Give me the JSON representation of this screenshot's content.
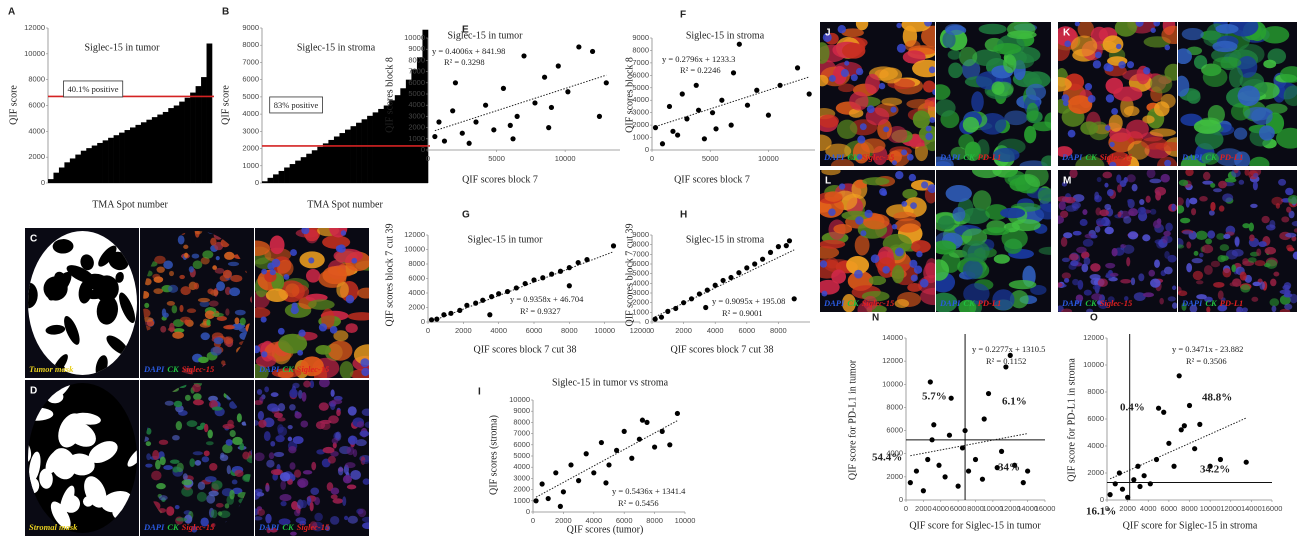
{
  "chart_data": [
    {
      "panel": "A",
      "type": "bar",
      "title": "Siglec-15 in tumor",
      "xlabel": "TMA Spot number",
      "ylabel": "QIF score",
      "values": [
        300,
        800,
        1200,
        1600,
        1900,
        2200,
        2500,
        2700,
        2900,
        3100,
        3300,
        3500,
        3700,
        3900,
        4100,
        4300,
        4500,
        4700,
        4900,
        5100,
        5300,
        5500,
        5800,
        6000,
        6300,
        6600,
        7000,
        7500,
        8200,
        10800
      ],
      "color": "#000000",
      "ylim": [
        0,
        12000
      ],
      "yticks": [
        0,
        2000,
        4000,
        6000,
        8000,
        10000,
        12000
      ],
      "threshold": 6700,
      "threshold_color": "#d42222",
      "annotations": [
        "40.1% positive"
      ]
    },
    {
      "panel": "B",
      "type": "bar",
      "title": "Siglec-15 in stroma",
      "xlabel": "TMA Spot number",
      "ylabel": "QIF score",
      "values": [
        100,
        300,
        500,
        700,
        900,
        1100,
        1300,
        1500,
        1700,
        1900,
        2100,
        2300,
        2500,
        2700,
        2900,
        3100,
        3300,
        3500,
        3700,
        3900,
        4100,
        4300,
        4500,
        4800,
        5100,
        5500,
        6000,
        6600,
        7300,
        8900
      ],
      "color": "#000000",
      "ylim": [
        0,
        9000
      ],
      "yticks": [
        0,
        1000,
        2000,
        3000,
        4000,
        5000,
        6000,
        7000,
        8000,
        9000
      ],
      "threshold": 2150,
      "threshold_color": "#d42222",
      "annotations": [
        "83% positive"
      ]
    },
    {
      "panel": "E",
      "type": "scatter",
      "title": "Siglec-15 in tumor",
      "xlabel": "QIF scores block 7",
      "ylabel": "QIF scores block 8",
      "x": [
        500,
        1200,
        1800,
        2500,
        3000,
        3500,
        4200,
        4800,
        5500,
        6000,
        6500,
        7000,
        7800,
        8500,
        9000,
        9500,
        10200,
        11000,
        12000,
        13000,
        12500,
        800,
        2000,
        6200,
        8800
      ],
      "values": [
        1200,
        800,
        3500,
        1500,
        600,
        2500,
        4000,
        1800,
        5500,
        2200,
        3000,
        8400,
        4200,
        6500,
        3800,
        7500,
        5200,
        9200,
        8800,
        6000,
        3000,
        2500,
        6000,
        1000,
        2000
      ],
      "color": "#000000",
      "xlim": [
        0,
        14000
      ],
      "xticks": [
        0,
        5000,
        10000
      ],
      "ylim": [
        0,
        10000
      ],
      "yticks": [
        0,
        1000,
        2000,
        3000,
        4000,
        5000,
        6000,
        7000,
        8000,
        9000,
        10000
      ],
      "trendline": true,
      "annotations": [
        "y = 0.4006x + 841.98",
        "R² = 0.3298"
      ]
    },
    {
      "panel": "F",
      "type": "scatter",
      "title": "Siglec-15 in stroma",
      "xlabel": "QIF scores block 7",
      "ylabel": "QIF scores block 8",
      "x": [
        300,
        900,
        1500,
        2200,
        3000,
        3800,
        4500,
        5200,
        6000,
        6800,
        7500,
        8200,
        9000,
        10000,
        11000,
        12500,
        13500,
        1800,
        4000,
        7000,
        5500,
        2600
      ],
      "values": [
        1800,
        500,
        3500,
        1200,
        2500,
        5200,
        900,
        3000,
        4000,
        2000,
        8500,
        3600,
        4800,
        2800,
        5200,
        6600,
        4500,
        1500,
        3200,
        6200,
        1700,
        4500
      ],
      "color": "#000000",
      "xlim": [
        0,
        14000
      ],
      "xticks": [
        0,
        5000,
        10000
      ],
      "ylim": [
        0,
        9000
      ],
      "yticks": [
        0,
        1000,
        2000,
        3000,
        4000,
        5000,
        6000,
        7000,
        8000,
        9000
      ],
      "trendline": true,
      "annotations": [
        "y = 0.2796x + 1233.3",
        "R² = 0.2246"
      ]
    },
    {
      "panel": "G",
      "type": "scatter",
      "title": "Siglec-15 in tumor",
      "xlabel": "QIF scores block 7 cut 38",
      "ylabel": "QIF scores block 7 cut 39",
      "x": [
        200,
        500,
        900,
        1300,
        1800,
        2200,
        2700,
        3100,
        3600,
        4000,
        4500,
        5000,
        5500,
        6000,
        6500,
        7000,
        7500,
        8000,
        8500,
        9000,
        10500,
        3500,
        8000
      ],
      "values": [
        300,
        400,
        1000,
        1200,
        1600,
        2300,
        2600,
        3000,
        3500,
        3900,
        4200,
        4700,
        5300,
        5800,
        6100,
        6600,
        7000,
        7500,
        8200,
        8600,
        10500,
        1000,
        5000
      ],
      "color": "#000000",
      "xlim": [
        0,
        12000
      ],
      "xticks": [
        0,
        2000,
        4000,
        6000,
        8000,
        10000,
        12000
      ],
      "ylim": [
        0,
        12000
      ],
      "yticks": [
        0,
        2000,
        4000,
        6000,
        8000,
        10000,
        12000
      ],
      "trendline": true,
      "annotations": [
        "y = 0.9358x + 46.704",
        "R² = 0.9327"
      ]
    },
    {
      "panel": "H",
      "type": "scatter",
      "title": "Siglec-15 in stroma",
      "xlabel": "QIF scores block 7 cut 38",
      "ylabel": "QIF scores block 7 cut 39",
      "x": [
        200,
        600,
        1000,
        1500,
        2000,
        2500,
        3000,
        3500,
        4000,
        4500,
        5000,
        5500,
        6000,
        6500,
        7000,
        7500,
        8000,
        8500,
        8700,
        9000,
        3400
      ],
      "values": [
        300,
        500,
        1100,
        1400,
        2000,
        2400,
        2900,
        3300,
        3800,
        4300,
        4600,
        5100,
        5600,
        6000,
        6500,
        7200,
        7800,
        7900,
        8400,
        2400,
        1500
      ],
      "color": "#000000",
      "xlim": [
        0,
        10000
      ],
      "xticks": [
        0,
        2000,
        4000,
        6000,
        8000
      ],
      "ylim": [
        0,
        9000
      ],
      "yticks": [
        0,
        1000,
        2000,
        3000,
        4000,
        5000,
        6000,
        7000,
        8000,
        9000
      ],
      "trendline": true,
      "annotations": [
        "y = 0.9095x + 195.08",
        "R² = 0.9001"
      ]
    },
    {
      "panel": "I",
      "type": "scatter",
      "title": "Siglec-15 in tumor vs stroma",
      "xlabel": "QIF scores (tumor)",
      "ylabel": "QIF scores (stroma)",
      "x": [
        200,
        600,
        1000,
        1500,
        2000,
        2500,
        3000,
        3500,
        4000,
        4500,
        5000,
        5500,
        6000,
        6500,
        7000,
        7500,
        8000,
        8500,
        9000,
        9500,
        1800,
        4800,
        7200
      ],
      "values": [
        1000,
        2500,
        1200,
        3500,
        1800,
        4200,
        2800,
        5200,
        3500,
        6200,
        4200,
        5500,
        7200,
        4800,
        6500,
        8000,
        5800,
        7200,
        6000,
        8800,
        500,
        2600,
        8200
      ],
      "color": "#000000",
      "xlim": [
        0,
        10000
      ],
      "xticks": [
        0,
        2000,
        4000,
        6000,
        8000,
        10000
      ],
      "ylim": [
        0,
        10000
      ],
      "yticks": [
        0,
        1000,
        2000,
        3000,
        4000,
        5000,
        6000,
        7000,
        8000,
        9000,
        10000
      ],
      "trendline": true,
      "annotations": [
        "y = 0.5436x + 1341.4",
        "R² = 0.5456"
      ]
    },
    {
      "panel": "N",
      "type": "scatter",
      "xlabel": "QIF score for Siglec-15 in tumor",
      "ylabel": "QIF score for PD-L1 in tumor",
      "x": [
        500,
        1200,
        2000,
        2800,
        3200,
        3800,
        4500,
        5200,
        6000,
        6500,
        7200,
        8000,
        8800,
        9500,
        10500,
        11500,
        12000,
        12500,
        13500,
        14000,
        3000,
        6800,
        9000,
        11000,
        2500,
        5000
      ],
      "values": [
        1500,
        2500,
        800,
        10200,
        6500,
        3000,
        2000,
        8800,
        1200,
        4500,
        2500,
        3500,
        1800,
        9200,
        2800,
        11500,
        12500,
        3000,
        1500,
        2500,
        5200,
        6000,
        7000,
        4200,
        3500,
        5600
      ],
      "color": "#000000",
      "xlim": [
        0,
        16000
      ],
      "xticks": [
        0,
        2000,
        4000,
        6000,
        8000,
        10000,
        12000,
        14000,
        16000
      ],
      "ylim": [
        0,
        14000
      ],
      "yticks": [
        0,
        2000,
        4000,
        6000,
        8000,
        10000,
        12000,
        14000
      ],
      "trendline": true,
      "vline": 6800,
      "hline": 5200,
      "annotations": [
        "y = 0.2277x + 1310.5",
        "R² = 0.1152",
        "5.7%",
        "6.1%",
        "54.4%",
        "34%"
      ]
    },
    {
      "panel": "O",
      "type": "scatter",
      "xlabel": "QIF score for Siglec-15 in stroma",
      "ylabel": "QIF score for PD-L1 in stroma",
      "x": [
        300,
        800,
        1500,
        2000,
        2600,
        3000,
        3600,
        4200,
        4800,
        5500,
        6000,
        6500,
        7000,
        7500,
        8000,
        8500,
        9000,
        10000,
        11000,
        13500,
        1200,
        5000,
        7200,
        3200
      ],
      "values": [
        400,
        1200,
        800,
        200,
        1500,
        2500,
        1800,
        1200,
        3000,
        6500,
        4200,
        2500,
        9200,
        5500,
        7000,
        3800,
        5600,
        2500,
        3000,
        2800,
        2000,
        6800,
        5200,
        1000
      ],
      "color": "#000000",
      "xlim": [
        0,
        16000
      ],
      "xticks": [
        0,
        2000,
        4000,
        6000,
        8000,
        10000,
        12000,
        14000,
        16000
      ],
      "ylim": [
        0,
        12000
      ],
      "yticks": [
        0,
        2000,
        4000,
        6000,
        8000,
        10000,
        12000
      ],
      "trendline": true,
      "vline": 2200,
      "hline": 1300,
      "annotations": [
        "y = 0.3471x - 23.882",
        "R² = 0.3506",
        "0.4%",
        "48.8%",
        "16.1%",
        "34.2%"
      ]
    }
  ],
  "image_panels": [
    {
      "panel": "C",
      "captions": [
        [
          "Tumor mask"
        ],
        [
          "DAPI",
          "CK",
          "Siglec-15"
        ],
        [
          "DAPI",
          "CK",
          "Siglec-15"
        ]
      ]
    },
    {
      "panel": "D",
      "captions": [
        [
          "Stromal mask"
        ],
        [
          "DAPI",
          "CK",
          "Siglec-15"
        ],
        [
          "DAPI",
          "CK",
          "Siglec-15"
        ]
      ]
    },
    {
      "panel": "J",
      "captions": [
        [
          "DAPI",
          "CK",
          "Siglec-15"
        ],
        [
          "DAPI",
          "CK",
          "PD-L1"
        ]
      ]
    },
    {
      "panel": "K",
      "captions": [
        [
          "DAPI",
          "CK",
          "Siglec-15"
        ],
        [
          "DAPI",
          "CK",
          "PD-L1"
        ]
      ]
    },
    {
      "panel": "L",
      "captions": [
        [
          "DAPI",
          "CK",
          "Siglec-15"
        ],
        [
          "DAPI",
          "CK",
          "PD-L1"
        ]
      ]
    },
    {
      "panel": "M",
      "captions": [
        [
          "DAPI",
          "CK",
          "Siglec-15"
        ],
        [
          "DAPI",
          "CK",
          "PD-L1"
        ]
      ]
    }
  ]
}
